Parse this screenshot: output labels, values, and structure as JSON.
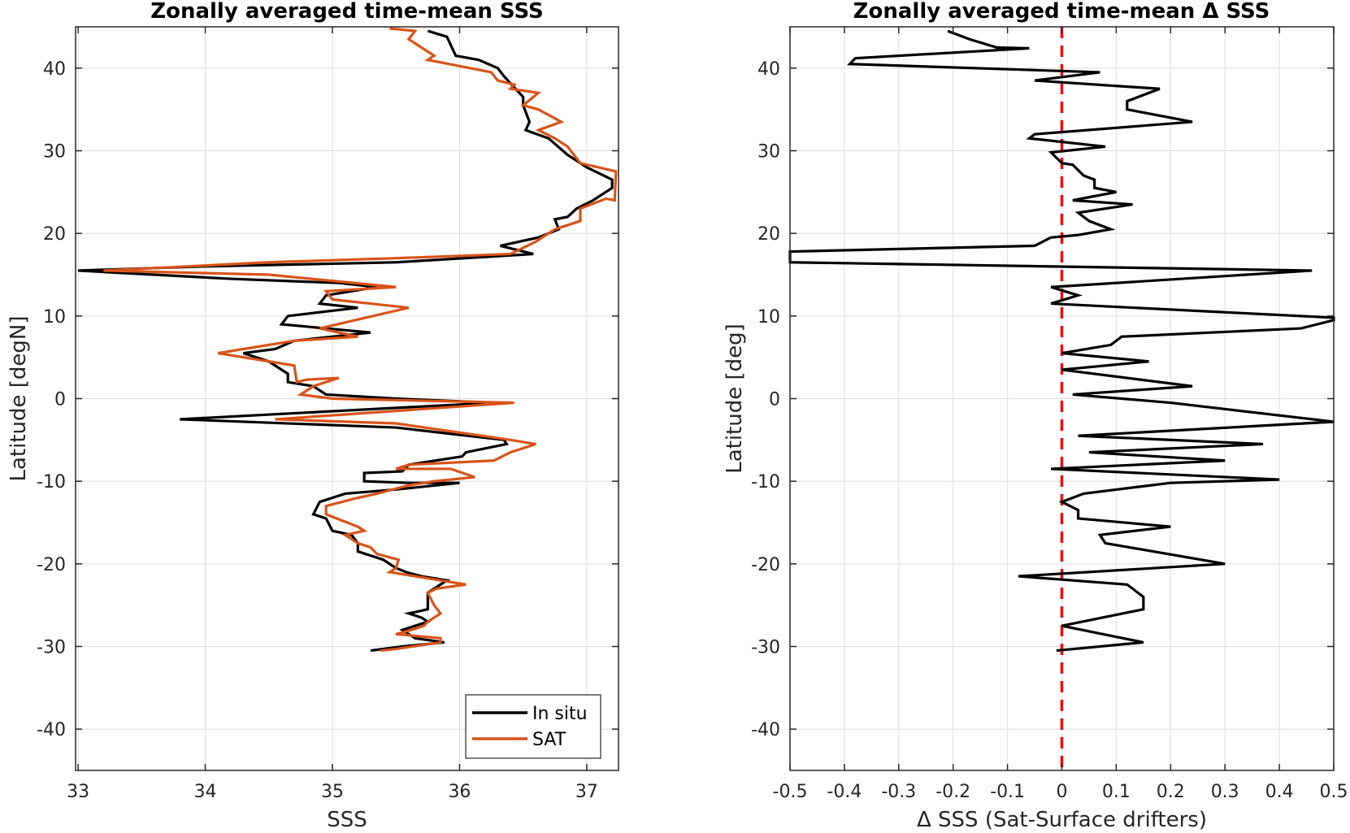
{
  "chart_data": [
    {
      "type": "line",
      "title": "Zonally averaged time-mean SSS",
      "xlabel": "SSS",
      "ylabel": "Latitude [degN]",
      "xlim": [
        32.98,
        37.25
      ],
      "ylim": [
        -45,
        45
      ],
      "xticks": [
        33,
        34,
        35,
        36,
        37
      ],
      "yticks": [
        -40,
        -30,
        -20,
        -10,
        0,
        10,
        20,
        30,
        40
      ],
      "grid": true,
      "legend": {
        "placement": "bottom-right",
        "entries": [
          "In situ",
          "SAT"
        ]
      },
      "series": [
        {
          "name": "In situ",
          "color": "#000000",
          "points": [
            [
              35.75,
              44.5
            ],
            [
              35.9,
              43.8
            ],
            [
              35.97,
              41.5
            ],
            [
              36.15,
              41.0
            ],
            [
              36.3,
              40.0
            ],
            [
              36.35,
              39.0
            ],
            [
              36.5,
              36.5
            ],
            [
              36.5,
              35.5
            ],
            [
              36.55,
              33.5
            ],
            [
              36.52,
              32.5
            ],
            [
              36.7,
              31.5
            ],
            [
              36.85,
              29.5
            ],
            [
              37.0,
              28.0
            ],
            [
              37.2,
              26.5
            ],
            [
              37.2,
              25.5
            ],
            [
              37.05,
              24.0
            ],
            [
              36.92,
              23.0
            ],
            [
              36.85,
              22.0
            ],
            [
              36.75,
              21.7
            ],
            [
              36.78,
              20.5
            ],
            [
              36.62,
              19.5
            ],
            [
              36.32,
              18.5
            ],
            [
              36.58,
              17.5
            ],
            [
              35.5,
              16.5
            ],
            [
              34.0,
              16.0
            ],
            [
              33.0,
              15.5
            ],
            [
              34.2,
              14.5
            ],
            [
              35.05,
              14.0
            ],
            [
              35.35,
              13.5
            ],
            [
              34.95,
              12.5
            ],
            [
              34.9,
              11.5
            ],
            [
              35.2,
              11.0
            ],
            [
              34.65,
              10.0
            ],
            [
              34.6,
              9.0
            ],
            [
              35.3,
              8.0
            ],
            [
              34.7,
              7.0
            ],
            [
              34.55,
              6.0
            ],
            [
              34.3,
              5.5
            ],
            [
              34.5,
              4.5
            ],
            [
              34.65,
              3.0
            ],
            [
              34.65,
              2.0
            ],
            [
              34.85,
              1.5
            ],
            [
              34.95,
              0.5
            ],
            [
              35.5,
              0.0
            ],
            [
              36.27,
              -0.5
            ],
            [
              33.8,
              -2.5
            ],
            [
              35.5,
              -3.5
            ],
            [
              36.35,
              -5.0
            ],
            [
              36.37,
              -5.5
            ],
            [
              36.05,
              -6.5
            ],
            [
              36.02,
              -7.0
            ],
            [
              35.6,
              -8.0
            ],
            [
              35.55,
              -8.8
            ],
            [
              35.25,
              -9.0
            ],
            [
              35.25,
              -10.0
            ],
            [
              35.6,
              -10.2
            ],
            [
              36.0,
              -10.2
            ],
            [
              35.5,
              -11.0
            ],
            [
              35.1,
              -11.5
            ],
            [
              34.9,
              -12.5
            ],
            [
              34.85,
              -14.0
            ],
            [
              34.95,
              -14.5
            ],
            [
              35.0,
              -16.0
            ],
            [
              35.15,
              -16.5
            ],
            [
              35.2,
              -17.5
            ],
            [
              35.2,
              -18.5
            ],
            [
              35.4,
              -19.5
            ],
            [
              35.5,
              -20.5
            ],
            [
              35.58,
              -21.0
            ],
            [
              35.7,
              -21.5
            ],
            [
              35.9,
              -22.0
            ],
            [
              35.85,
              -22.5
            ],
            [
              35.75,
              -23.5
            ],
            [
              35.75,
              -25.5
            ],
            [
              35.6,
              -26.0
            ],
            [
              35.7,
              -26.5
            ],
            [
              35.75,
              -27.0
            ],
            [
              35.55,
              -28.0
            ],
            [
              35.65,
              -29.0
            ],
            [
              35.88,
              -29.5
            ],
            [
              35.55,
              -30.0
            ],
            [
              35.3,
              -30.5
            ]
          ]
        },
        {
          "name": "SAT",
          "color": "#D95319",
          "points": [
            [
              35.45,
              44.8
            ],
            [
              35.65,
              44.5
            ],
            [
              35.6,
              43.5
            ],
            [
              35.75,
              42.0
            ],
            [
              35.8,
              41.5
            ],
            [
              35.75,
              41.0
            ],
            [
              36.25,
              39.5
            ],
            [
              36.3,
              38.5
            ],
            [
              36.43,
              38.0
            ],
            [
              36.4,
              37.5
            ],
            [
              36.62,
              37.0
            ],
            [
              36.5,
              35.5
            ],
            [
              36.62,
              35.0
            ],
            [
              36.8,
              33.5
            ],
            [
              36.62,
              32.5
            ],
            [
              36.75,
              31.5
            ],
            [
              36.85,
              30.5
            ],
            [
              36.95,
              28.5
            ],
            [
              37.23,
              27.5
            ],
            [
              37.22,
              24.0
            ],
            [
              37.15,
              24.2
            ],
            [
              36.95,
              23.0
            ],
            [
              36.95,
              21.5
            ],
            [
              36.75,
              20.5
            ],
            [
              36.6,
              19.0
            ],
            [
              36.4,
              17.5
            ],
            [
              35.5,
              17.0
            ],
            [
              34.5,
              16.5
            ],
            [
              33.2,
              15.5
            ],
            [
              34.5,
              15.0
            ],
            [
              35.5,
              13.5
            ],
            [
              34.95,
              13.0
            ],
            [
              35.0,
              12.0
            ],
            [
              35.6,
              11.0
            ],
            [
              34.9,
              8.5
            ],
            [
              35.2,
              7.5
            ],
            [
              34.7,
              7.0
            ],
            [
              34.3,
              6.0
            ],
            [
              34.1,
              5.5
            ],
            [
              34.7,
              4.0
            ],
            [
              34.72,
              2.0
            ],
            [
              34.8,
              2.3
            ],
            [
              35.05,
              2.5
            ],
            [
              34.85,
              1.5
            ],
            [
              34.75,
              0.5
            ],
            [
              35.0,
              0.0
            ],
            [
              36.43,
              -0.5
            ],
            [
              34.55,
              -2.5
            ],
            [
              35.5,
              -3.0
            ],
            [
              36.4,
              -5.0
            ],
            [
              36.6,
              -5.5
            ],
            [
              36.4,
              -6.5
            ],
            [
              36.27,
              -7.5
            ],
            [
              35.6,
              -8.0
            ],
            [
              35.5,
              -8.5
            ],
            [
              35.93,
              -8.5
            ],
            [
              36.12,
              -9.5
            ],
            [
              35.8,
              -10.0
            ],
            [
              35.6,
              -10.5
            ],
            [
              35.35,
              -11.5
            ],
            [
              35.2,
              -12.0
            ],
            [
              34.95,
              -13.0
            ],
            [
              34.95,
              -14.0
            ],
            [
              35.2,
              -15.5
            ],
            [
              35.25,
              -16.0
            ],
            [
              35.1,
              -16.5
            ],
            [
              35.2,
              -17.5
            ],
            [
              35.3,
              -18.0
            ],
            [
              35.35,
              -18.8
            ],
            [
              35.52,
              -19.5
            ],
            [
              35.5,
              -20.5
            ],
            [
              35.45,
              -21.0
            ],
            [
              35.85,
              -22.0
            ],
            [
              36.05,
              -22.5
            ],
            [
              35.82,
              -23.0
            ],
            [
              35.75,
              -23.5
            ],
            [
              35.8,
              -25.0
            ],
            [
              35.85,
              -26.0
            ],
            [
              35.75,
              -27.0
            ],
            [
              35.72,
              -27.5
            ],
            [
              35.62,
              -28.0
            ],
            [
              35.5,
              -28.5
            ],
            [
              35.85,
              -29.0
            ],
            [
              35.85,
              -29.5
            ],
            [
              35.5,
              -30.3
            ],
            [
              35.38,
              -30.5
            ]
          ]
        }
      ]
    },
    {
      "type": "line",
      "title": "Zonally averaged time-mean Δ SSS",
      "xlabel": "Δ SSS (Sat-Surface drifters)",
      "ylabel": "Latitude [deg]",
      "xlim": [
        -0.5,
        0.5
      ],
      "ylim": [
        -45,
        45
      ],
      "xticks": [
        -0.5,
        -0.4,
        -0.3,
        -0.2,
        -0.1,
        0,
        0.1,
        0.2,
        0.3,
        0.4,
        0.5
      ],
      "xtick_labels": [
        "-0.5",
        "-0.4",
        "-0.3",
        "-0.2",
        "-0.1",
        "0",
        "0.1",
        "0.2",
        "0.3",
        "0.4",
        "0.5"
      ],
      "yticks": [
        -40,
        -30,
        -20,
        -10,
        0,
        10,
        20,
        30,
        40
      ],
      "grid": true,
      "reference_line": {
        "x": 0,
        "color": "#FF0000",
        "style": "dashed"
      },
      "series": [
        {
          "name": "",
          "color": "#000000",
          "points": [
            [
              -0.21,
              44.5
            ],
            [
              -0.17,
              43.5
            ],
            [
              -0.12,
              42.5
            ],
            [
              -0.06,
              42.4
            ],
            [
              -0.38,
              41.2
            ],
            [
              -0.39,
              40.5
            ],
            [
              0.07,
              39.5
            ],
            [
              -0.05,
              38.5
            ],
            [
              0.18,
              37.5
            ],
            [
              0.12,
              36.0
            ],
            [
              0.12,
              35.0
            ],
            [
              0.24,
              33.5
            ],
            [
              -0.05,
              32.0
            ],
            [
              -0.06,
              31.5
            ],
            [
              0.08,
              30.5
            ],
            [
              -0.02,
              29.8
            ],
            [
              0.0,
              28.5
            ],
            [
              0.02,
              28.3
            ],
            [
              0.04,
              27.0
            ],
            [
              0.06,
              26.5
            ],
            [
              0.06,
              25.5
            ],
            [
              0.1,
              25.0
            ],
            [
              0.02,
              24.0
            ],
            [
              0.13,
              23.5
            ],
            [
              0.03,
              22.5
            ],
            [
              0.05,
              21.5
            ],
            [
              0.09,
              20.5
            ],
            [
              0.03,
              19.8
            ],
            [
              -0.02,
              19.5
            ],
            [
              -0.05,
              18.5
            ],
            [
              -0.5,
              17.8
            ],
            [
              -0.5,
              16.5
            ],
            [
              0.46,
              15.5
            ],
            [
              -0.02,
              13.5
            ],
            [
              0.03,
              12.5
            ],
            [
              -0.02,
              11.5
            ],
            [
              0.5,
              9.8
            ],
            [
              0.5,
              9.5
            ],
            [
              0.44,
              8.5
            ],
            [
              0.11,
              7.5
            ],
            [
              0.09,
              6.5
            ],
            [
              0.0,
              5.5
            ],
            [
              0.16,
              4.5
            ],
            [
              0.0,
              3.5
            ],
            [
              0.24,
              1.5
            ],
            [
              0.02,
              0.5
            ],
            [
              0.2,
              -0.5
            ],
            [
              0.5,
              -2.8
            ],
            [
              0.03,
              -4.5
            ],
            [
              0.37,
              -5.5
            ],
            [
              0.05,
              -6.5
            ],
            [
              0.3,
              -7.5
            ],
            [
              -0.02,
              -8.5
            ],
            [
              0.4,
              -9.8
            ],
            [
              0.2,
              -10.2
            ],
            [
              0.04,
              -11.5
            ],
            [
              0.0,
              -12.5
            ],
            [
              0.03,
              -13.5
            ],
            [
              0.03,
              -14.5
            ],
            [
              0.2,
              -15.5
            ],
            [
              0.07,
              -16.5
            ],
            [
              0.08,
              -17.5
            ],
            [
              0.3,
              -20.0
            ],
            [
              -0.08,
              -21.5
            ],
            [
              0.12,
              -22.5
            ],
            [
              0.15,
              -24.0
            ],
            [
              0.15,
              -25.5
            ],
            [
              0.0,
              -27.5
            ],
            [
              0.15,
              -29.5
            ],
            [
              -0.01,
              -30.5
            ]
          ]
        }
      ]
    }
  ]
}
